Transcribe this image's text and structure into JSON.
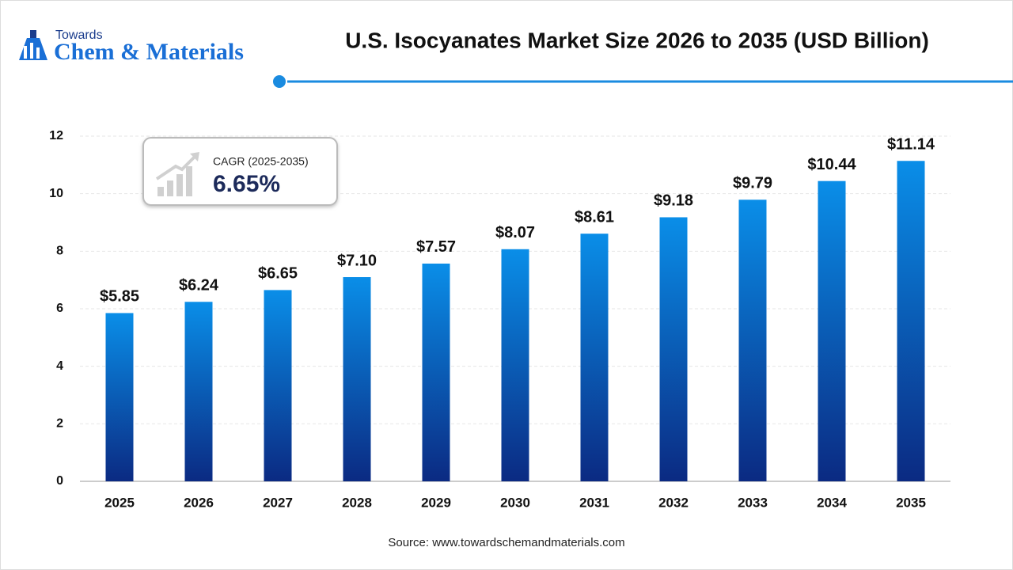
{
  "logo": {
    "top": "Towards",
    "name": "Chem & Materials"
  },
  "chart_data": {
    "type": "bar",
    "title": "U.S. Isocyanates Market Size 2026 to 2035 (USD Billion)",
    "categories": [
      "2025",
      "2026",
      "2027",
      "2028",
      "2029",
      "2030",
      "2031",
      "2032",
      "2033",
      "2034",
      "2035"
    ],
    "values": [
      5.85,
      6.24,
      6.65,
      7.1,
      7.57,
      8.07,
      8.61,
      9.18,
      9.79,
      10.44,
      11.14
    ],
    "value_labels": [
      "$5.85",
      "$6.24",
      "$6.65",
      "$7.10",
      "$7.57",
      "$8.07",
      "$8.61",
      "$9.18",
      "$9.79",
      "$10.44",
      "$11.14"
    ],
    "color": "#0a8ee8",
    "ylim": [
      0,
      12
    ],
    "yticks": [
      0,
      2,
      4,
      6,
      8,
      10,
      12
    ],
    "grid": true,
    "annotation": {
      "label": "CAGR (2025-2035)",
      "value": "6.65%"
    },
    "source": "Source: www.towardschemandmaterials.com"
  }
}
